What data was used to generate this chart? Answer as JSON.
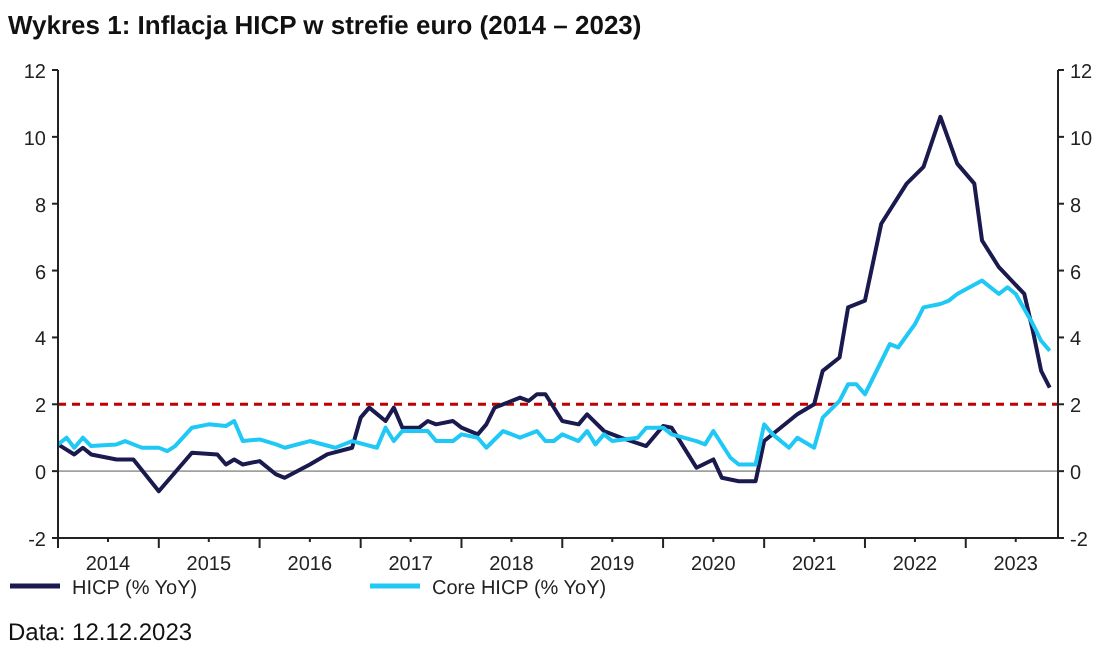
{
  "chart_data": {
    "type": "line",
    "title": "Wykres 1: Inflacja HICP w strefie euro (2014 – 2023)",
    "xlim": [
      "2014-01-01",
      "2023-12-01"
    ],
    "xticks": [
      {
        "value": "2014-01-01",
        "label": null
      },
      {
        "value": "2014-07-01",
        "label": "2014"
      },
      {
        "value": "2015-01-01",
        "label": null
      },
      {
        "value": "2015-07-01",
        "label": "2015"
      },
      {
        "value": "2016-01-01",
        "label": null
      },
      {
        "value": "2016-07-01",
        "label": "2016"
      },
      {
        "value": "2017-01-01",
        "label": null
      },
      {
        "value": "2017-07-01",
        "label": "2017"
      },
      {
        "value": "2018-01-01",
        "label": null
      },
      {
        "value": "2018-07-01",
        "label": "2018"
      },
      {
        "value": "2019-01-01",
        "label": null
      },
      {
        "value": "2019-07-01",
        "label": "2019"
      },
      {
        "value": "2020-01-01",
        "label": null
      },
      {
        "value": "2020-07-01",
        "label": "2020"
      },
      {
        "value": "2021-01-01",
        "label": null
      },
      {
        "value": "2021-07-01",
        "label": "2021"
      },
      {
        "value": "2022-01-01",
        "label": null
      },
      {
        "value": "2022-07-01",
        "label": "2022"
      },
      {
        "value": "2023-01-01",
        "label": null
      },
      {
        "value": "2023-07-01",
        "label": "2023"
      }
    ],
    "ylim": [
      -2,
      12
    ],
    "yticks": [
      -2,
      0,
      2,
      4,
      6,
      8,
      10,
      12
    ],
    "y2lim": [
      -2,
      12
    ],
    "y2ticks": [
      -2,
      0,
      2,
      4,
      6,
      8,
      10,
      12
    ],
    "grid": false,
    "legend": "bottom",
    "line_style": "solid",
    "marker": "none",
    "ref_lines": [
      {
        "axis": "y",
        "value": 0,
        "label": null,
        "color": "#a0a0a0",
        "line_style": "solid"
      },
      {
        "axis": "y",
        "value": 2,
        "label": null,
        "color": "#c00000",
        "line_style": "dashed"
      }
    ],
    "series": [
      {
        "name": "HICP (% YoY)",
        "color": "#1b1a4f",
        "x": [
          "2014-01",
          "2014-03",
          "2014-04",
          "2014-05",
          "2014-08",
          "2014-10",
          "2015-01",
          "2015-05",
          "2015-08",
          "2015-09",
          "2015-10",
          "2015-11",
          "2016-01",
          "2016-03",
          "2016-04",
          "2016-07",
          "2016-09",
          "2016-12",
          "2017-01",
          "2017-02",
          "2017-04",
          "2017-05",
          "2017-06",
          "2017-08",
          "2017-09",
          "2017-10",
          "2017-12",
          "2018-01",
          "2018-03",
          "2018-04",
          "2018-05",
          "2018-08",
          "2018-09",
          "2018-10",
          "2018-11",
          "2019-01",
          "2019-03",
          "2019-04",
          "2019-06",
          "2019-08",
          "2019-11",
          "2020-01",
          "2020-02",
          "2020-04",
          "2020-05",
          "2020-07",
          "2020-08",
          "2020-10",
          "2020-12",
          "2021-01",
          "2021-05",
          "2021-07",
          "2021-08",
          "2021-10",
          "2021-11",
          "2022-01",
          "2022-03",
          "2022-06",
          "2022-08",
          "2022-10",
          "2022-12",
          "2023-02",
          "2023-03",
          "2023-05",
          "2023-08",
          "2023-09",
          "2023-10",
          "2023-11"
        ],
        "values": [
          0.8,
          0.5,
          0.7,
          0.5,
          0.35,
          0.35,
          -0.6,
          0.55,
          0.5,
          0.2,
          0.35,
          0.2,
          0.3,
          -0.1,
          -0.2,
          0.2,
          0.5,
          0.7,
          1.6,
          1.9,
          1.5,
          1.9,
          1.3,
          1.3,
          1.5,
          1.4,
          1.5,
          1.3,
          1.1,
          1.4,
          1.9,
          2.2,
          2.1,
          2.3,
          2.3,
          1.5,
          1.4,
          1.7,
          1.2,
          1.0,
          0.75,
          1.35,
          1.3,
          0.5,
          0.1,
          0.35,
          -0.2,
          -0.3,
          -0.3,
          0.9,
          1.7,
          2.0,
          3.0,
          3.4,
          4.9,
          5.1,
          7.4,
          8.6,
          9.1,
          10.6,
          9.2,
          8.6,
          6.9,
          6.1,
          5.3,
          4.2,
          3.0,
          2.5
        ]
      },
      {
        "name": "Core HICP (% YoY)",
        "color": "#1fc8f5",
        "x": [
          "2014-01",
          "2014-02",
          "2014-03",
          "2014-04",
          "2014-05",
          "2014-08",
          "2014-09",
          "2014-11",
          "2015-01",
          "2015-02",
          "2015-03",
          "2015-05",
          "2015-07",
          "2015-09",
          "2015-10",
          "2015-11",
          "2016-01",
          "2016-03",
          "2016-04",
          "2016-07",
          "2016-10",
          "2016-12",
          "2017-03",
          "2017-04",
          "2017-05",
          "2017-06",
          "2017-09",
          "2017-10",
          "2017-12",
          "2018-01",
          "2018-03",
          "2018-04",
          "2018-06",
          "2018-08",
          "2018-10",
          "2018-11",
          "2018-12",
          "2019-01",
          "2019-03",
          "2019-04",
          "2019-05",
          "2019-06",
          "2019-07",
          "2019-10",
          "2019-11",
          "2020-01",
          "2020-02",
          "2020-05",
          "2020-06",
          "2020-07",
          "2020-09",
          "2020-10",
          "2020-12",
          "2021-01",
          "2021-02",
          "2021-04",
          "2021-05",
          "2021-07",
          "2021-08",
          "2021-10",
          "2021-11",
          "2021-12",
          "2022-01",
          "2022-04",
          "2022-05",
          "2022-07",
          "2022-08",
          "2022-10",
          "2022-11",
          "2022-12",
          "2023-03",
          "2023-05",
          "2023-06",
          "2023-07",
          "2023-09",
          "2023-10",
          "2023-11"
        ],
        "values": [
          0.8,
          1.0,
          0.7,
          1.0,
          0.75,
          0.8,
          0.9,
          0.7,
          0.7,
          0.6,
          0.75,
          1.3,
          1.4,
          1.35,
          1.5,
          0.9,
          0.95,
          0.8,
          0.7,
          0.9,
          0.7,
          0.9,
          0.7,
          1.3,
          0.9,
          1.2,
          1.2,
          0.9,
          0.9,
          1.1,
          1.0,
          0.7,
          1.2,
          1.0,
          1.2,
          0.9,
          0.9,
          1.1,
          0.9,
          1.2,
          0.8,
          1.1,
          0.9,
          1.0,
          1.3,
          1.3,
          1.1,
          0.9,
          0.8,
          1.2,
          0.4,
          0.2,
          0.2,
          1.4,
          1.1,
          0.7,
          1.0,
          0.7,
          1.6,
          2.1,
          2.6,
          2.6,
          2.3,
          3.8,
          3.7,
          4.4,
          4.9,
          5.0,
          5.1,
          5.3,
          5.7,
          5.3,
          5.5,
          5.3,
          4.4,
          3.9,
          3.6
        ]
      }
    ],
    "annotations": [
      "Data: 12.12.2023"
    ]
  }
}
